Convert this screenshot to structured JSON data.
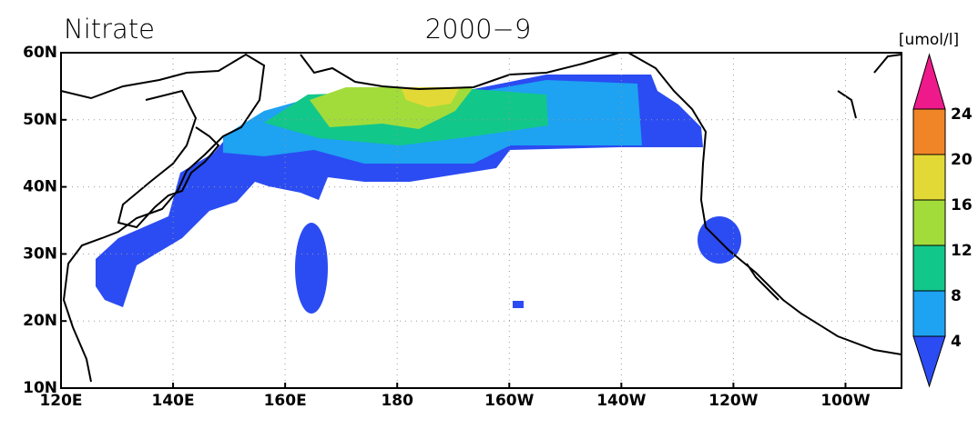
{
  "title": "Nitrate",
  "date": "2000−9",
  "map": {
    "xlim": [
      120,
      270
    ],
    "ylim": [
      10,
      60
    ],
    "xticks": [
      {
        "value": 120,
        "label": "120E"
      },
      {
        "value": 140,
        "label": "140E"
      },
      {
        "value": 160,
        "label": "160E"
      },
      180,
      {
        "value": 200,
        "label": "160W"
      },
      {
        "value": 220,
        "label": "140W"
      },
      {
        "value": 240,
        "label": "120W"
      },
      {
        "value": 260,
        "label": "100W"
      }
    ],
    "yticks": [
      {
        "value": 10,
        "label": "10N"
      },
      {
        "value": 20,
        "label": "20N"
      },
      {
        "value": 30,
        "label": "30N"
      },
      {
        "value": 40,
        "label": "40N"
      },
      {
        "value": 50,
        "label": "50N"
      },
      {
        "value": 60,
        "label": "60N"
      }
    ],
    "grid": true
  },
  "colorbar": {
    "label": "[umol/l]",
    "levels": [
      4,
      8,
      12,
      16,
      20,
      24
    ],
    "colors": [
      "#2b4cf2",
      "#1ea2f2",
      "#12c78a",
      "#a2dc3a",
      "#e3d936",
      "#f08528",
      "#ee1a8c"
    ]
  }
}
